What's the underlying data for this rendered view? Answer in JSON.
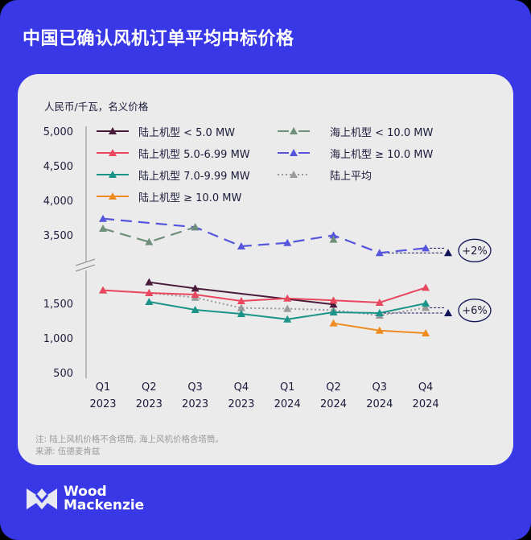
{
  "title": "中国已确认风机订单平均中标价格",
  "brand": "Wood Mackenzie",
  "brand_lines": [
    "Wood",
    "Mackenzie"
  ],
  "notes": [
    "注: 陆上风机价格不含塔筒, 海上风机价格含塔筒。",
    "来源: 伍德麦肯兹"
  ],
  "colors": {
    "background": "#3838e6",
    "card": "#ebebeb",
    "annotation": "#14145a"
  },
  "chart_data": {
    "type": "line",
    "title": "中国已确认风机订单平均中标价格",
    "ylabel": "人民币/千瓦，名义价格",
    "categories": [
      "Q1\n2023",
      "Q2\n2023",
      "Q3\n2023",
      "Q4\n2023",
      "Q1\n2024",
      "Q2\n2024",
      "Q3\n2024",
      "Q4\n2024"
    ],
    "category_lines": [
      [
        "Q1",
        "2023"
      ],
      [
        "Q2",
        "2023"
      ],
      [
        "Q3",
        "2023"
      ],
      [
        "Q4",
        "2023"
      ],
      [
        "Q1",
        "2024"
      ],
      [
        "Q2",
        "2024"
      ],
      [
        "Q3",
        "2024"
      ],
      [
        "Q4",
        "2024"
      ]
    ],
    "yticks": [
      "5,000",
      "4,500",
      "4,000",
      "3,500",
      "1,500",
      "1,000",
      "500"
    ],
    "ytick_values": [
      5000,
      4500,
      4000,
      3500,
      1500,
      1000,
      500
    ],
    "y_axis_break": [
      2000,
      3000
    ],
    "ylim": [
      500,
      5000
    ],
    "legend_position": "top",
    "series": [
      {
        "name": "陆上机型 < 5.0 MW",
        "color": "#4a1a3a",
        "style": "solid",
        "connect_gaps": true,
        "values": [
          null,
          1806,
          1717,
          null,
          null,
          1485,
          null,
          null
        ]
      },
      {
        "name": "陆上机型 5.0-6.99 MW",
        "color": "#e8475e",
        "style": "solid",
        "connect_gaps": true,
        "values": [
          1690,
          1651,
          1628,
          1535,
          1573,
          1543,
          1512,
          1728
        ]
      },
      {
        "name": "陆上机型 7.0-9.99 MW",
        "color": "#1a9488",
        "style": "solid",
        "connect_gaps": true,
        "values": [
          null,
          1523,
          1407,
          1349,
          1271,
          1372,
          1360,
          1500
        ]
      },
      {
        "name": "陆上机型 ≥ 10.0 MW",
        "color": "#ee8a1e",
        "style": "solid",
        "connect_gaps": true,
        "values": [
          null,
          null,
          null,
          null,
          null,
          1213,
          1108,
          1070
        ]
      },
      {
        "name": "海上机型 < 10.0 MW",
        "color": "#6f8f7a",
        "style": "dashed",
        "connect_gaps": false,
        "values": [
          3593,
          3399,
          3613,
          null,
          null,
          3434,
          null,
          null
        ]
      },
      {
        "name": "海上机型 ≥ 10.0 MW",
        "color": "#5555dd",
        "style": "dashed",
        "connect_gaps": true,
        "values": [
          3736,
          null,
          3613,
          3337,
          3387,
          3496,
          3241,
          3310
        ]
      },
      {
        "name": "陆上平均",
        "color": "#999999",
        "style": "dotted",
        "connect_gaps": true,
        "values": [
          1690,
          1651,
          1585,
          1434,
          1423,
          1403,
          1325,
          1438
        ]
      }
    ],
    "annotations": [
      {
        "label": "+2%",
        "from_value": 3241,
        "to_value": 3310
      },
      {
        "label": "+6%",
        "from_value": 1360,
        "to_value": 1438
      }
    ]
  }
}
